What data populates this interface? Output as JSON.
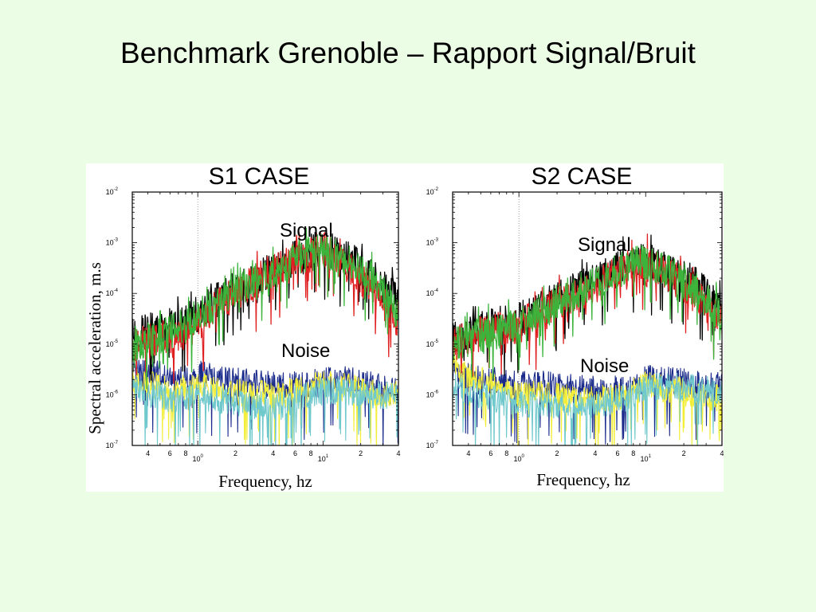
{
  "slide": {
    "title": "Benchmark Grenoble – Rapport Signal/Bruit"
  },
  "colors": {
    "background": "#ecfde6",
    "signal_black": "#000000",
    "signal_red": "#e02020",
    "signal_green": "#3cb43c",
    "noise_navy": "#1a2a8a",
    "noise_yellow": "#f2ee3a",
    "noise_cyan": "#6ec8cc",
    "reference_line": "#888888"
  },
  "y_axis_label": "Spectral acceleration, m.s",
  "chart_data": [
    {
      "type": "line",
      "title": "S1 CASE",
      "xlabel": "Frequency, hz",
      "ylabel": "Spectral acceleration, m.s",
      "xscale": "log",
      "yscale": "log",
      "xlim": [
        0.3,
        40
      ],
      "ylim": [
        1e-07,
        0.01
      ],
      "reference_line_x": 1,
      "x_ticks": [
        {
          "value": 0.4,
          "label": "4",
          "exp": ""
        },
        {
          "value": 0.6,
          "label": "6",
          "exp": ""
        },
        {
          "value": 0.8,
          "label": "8",
          "exp": ""
        },
        {
          "value": 1,
          "label": "10",
          "exp": "0"
        },
        {
          "value": 2,
          "label": "2",
          "exp": ""
        },
        {
          "value": 4,
          "label": "4",
          "exp": ""
        },
        {
          "value": 6,
          "label": "6",
          "exp": ""
        },
        {
          "value": 8,
          "label": "8",
          "exp": ""
        },
        {
          "value": 10,
          "label": "10",
          "exp": "1"
        },
        {
          "value": 20,
          "label": "2",
          "exp": ""
        },
        {
          "value": 40,
          "label": "4",
          "exp": ""
        }
      ],
      "y_ticks": [
        {
          "value": 1e-07,
          "label": "10",
          "exp": "-7"
        },
        {
          "value": 1e-06,
          "label": "10",
          "exp": "-6"
        },
        {
          "value": 1e-05,
          "label": "10",
          "exp": "-5"
        },
        {
          "value": 0.0001,
          "label": "10",
          "exp": "-4"
        },
        {
          "value": 0.001,
          "label": "10",
          "exp": "-3"
        },
        {
          "value": 0.01,
          "label": "10",
          "exp": "-2"
        }
      ],
      "annotations": {
        "signal": "Signal",
        "noise": "Noise"
      },
      "series": [
        {
          "group": "signal",
          "color": "#000000",
          "x": [
            0.3,
            0.45,
            0.7,
            1.0,
            1.5,
            2.0,
            3.0,
            4.5,
            6.0,
            8.0,
            10.0,
            13.0,
            18.0,
            25.0,
            32.0,
            40.0
          ],
          "y": [
            1.5e-05,
            2e-05,
            2.5e-05,
            4e-05,
            8e-05,
            0.00012,
            0.0002,
            0.00035,
            0.0005,
            0.0007,
            0.0008,
            0.0006,
            0.0004,
            0.0002,
            0.00012,
            8e-05
          ]
        },
        {
          "group": "signal",
          "color": "#e02020",
          "x": [
            0.3,
            0.45,
            0.7,
            1.0,
            1.5,
            2.0,
            3.0,
            4.5,
            6.0,
            8.0,
            10.0,
            13.0,
            18.0,
            25.0,
            32.0,
            40.0
          ],
          "y": [
            1e-05,
            1.2e-05,
            1.5e-05,
            2.5e-05,
            6e-05,
            0.0001,
            0.00018,
            0.0003,
            0.00045,
            0.00065,
            0.0008,
            0.0005,
            0.00025,
            0.00012,
            5e-05,
            3e-05
          ]
        },
        {
          "group": "signal",
          "color": "#3cb43c",
          "x": [
            0.3,
            0.45,
            0.7,
            1.0,
            1.5,
            2.0,
            3.0,
            4.5,
            6.0,
            8.0,
            10.0,
            13.0,
            18.0,
            25.0,
            32.0,
            40.0
          ],
          "y": [
            1e-05,
            1.3e-05,
            2e-05,
            3.5e-05,
            7e-05,
            0.00011,
            0.00018,
            0.0003,
            0.00045,
            0.0006,
            0.0007,
            0.00055,
            0.00035,
            0.00018,
            9e-05,
            4e-05
          ]
        },
        {
          "group": "noise",
          "color": "#1a2a8a",
          "x": [
            0.3,
            0.45,
            0.7,
            1.0,
            1.5,
            2.0,
            3.0,
            4.5,
            6.0,
            8.0,
            10.0,
            13.0,
            18.0,
            25.0,
            32.0,
            40.0
          ],
          "y": [
            3e-06,
            2.5e-06,
            2.2e-06,
            2.5e-06,
            2e-06,
            1.8e-06,
            1.6e-06,
            1.5e-06,
            1.5e-06,
            1.6e-06,
            1.8e-06,
            2e-06,
            1.8e-06,
            1.5e-06,
            1.2e-06,
            1.3e-06
          ]
        },
        {
          "group": "noise",
          "color": "#f2ee3a",
          "x": [
            0.3,
            0.45,
            0.7,
            1.0,
            1.5,
            2.0,
            3.0,
            4.5,
            6.0,
            8.0,
            10.0,
            13.0,
            18.0,
            25.0,
            32.0,
            40.0
          ],
          "y": [
            2e-06,
            1.5e-06,
            1.3e-06,
            1.5e-06,
            1.2e-06,
            1.1e-06,
            1e-06,
            1e-06,
            1.2e-06,
            1.4e-06,
            1.6e-06,
            1.5e-06,
            1.3e-06,
            1.1e-06,
            1e-06,
            1e-06
          ]
        },
        {
          "group": "noise",
          "color": "#6ec8cc",
          "x": [
            0.3,
            0.45,
            0.7,
            1.0,
            1.5,
            2.0,
            3.0,
            4.5,
            6.0,
            8.0,
            10.0,
            13.0,
            18.0,
            25.0,
            32.0,
            40.0
          ],
          "y": [
            1.5e-06,
            1e-06,
            8e-07,
            1e-06,
            8e-07,
            7e-07,
            6e-07,
            6e-07,
            8e-07,
            1e-06,
            1.2e-06,
            1.2e-06,
            1.1e-06,
            1e-06,
            1e-06,
            1.1e-06
          ]
        }
      ]
    },
    {
      "type": "line",
      "title": "S2 CASE",
      "xlabel": "Frequency, hz",
      "ylabel": "",
      "xscale": "log",
      "yscale": "log",
      "xlim": [
        0.3,
        40
      ],
      "ylim": [
        1e-07,
        0.01
      ],
      "reference_line_x": 1,
      "x_ticks": [
        {
          "value": 0.4,
          "label": "4",
          "exp": ""
        },
        {
          "value": 0.6,
          "label": "6",
          "exp": ""
        },
        {
          "value": 0.8,
          "label": "8",
          "exp": ""
        },
        {
          "value": 1,
          "label": "10",
          "exp": "0"
        },
        {
          "value": 2,
          "label": "2",
          "exp": ""
        },
        {
          "value": 4,
          "label": "4",
          "exp": ""
        },
        {
          "value": 6,
          "label": "6",
          "exp": ""
        },
        {
          "value": 8,
          "label": "8",
          "exp": ""
        },
        {
          "value": 10,
          "label": "10",
          "exp": "1"
        },
        {
          "value": 20,
          "label": "2",
          "exp": ""
        },
        {
          "value": 40,
          "label": "4",
          "exp": ""
        }
      ],
      "y_ticks": [
        {
          "value": 1e-07,
          "label": "10",
          "exp": "-7"
        },
        {
          "value": 1e-06,
          "label": "10",
          "exp": "-6"
        },
        {
          "value": 1e-05,
          "label": "10",
          "exp": "-5"
        },
        {
          "value": 0.0001,
          "label": "10",
          "exp": "-4"
        },
        {
          "value": 0.001,
          "label": "10",
          "exp": "-3"
        },
        {
          "value": 0.01,
          "label": "10",
          "exp": "-2"
        }
      ],
      "annotations": {
        "signal": "Signal",
        "noise": "Noise"
      },
      "series": [
        {
          "group": "signal",
          "color": "#000000",
          "x": [
            0.3,
            0.45,
            0.7,
            1.0,
            1.5,
            2.0,
            3.0,
            4.5,
            6.0,
            8.0,
            10.0,
            13.0,
            18.0,
            25.0,
            32.0,
            40.0
          ],
          "y": [
            1.2e-05,
            2e-05,
            2.5e-05,
            3e-05,
            5e-05,
            8e-05,
            0.00013,
            0.0002,
            0.0003,
            0.0004,
            0.00045,
            0.00035,
            0.00022,
            0.00015,
            8e-05,
            5e-05
          ]
        },
        {
          "group": "signal",
          "color": "#e02020",
          "x": [
            0.3,
            0.45,
            0.7,
            1.0,
            1.5,
            2.0,
            3.0,
            4.5,
            6.0,
            8.0,
            10.0,
            13.0,
            18.0,
            25.0,
            32.0,
            40.0
          ],
          "y": [
            1e-05,
            1.5e-05,
            2e-05,
            2.2e-05,
            4e-05,
            6e-05,
            0.0001,
            0.00016,
            0.00025,
            0.00035,
            0.0004,
            0.0003,
            0.00018,
            0.0001,
            5e-05,
            3e-05
          ]
        },
        {
          "group": "signal",
          "color": "#3cb43c",
          "x": [
            0.3,
            0.45,
            0.7,
            1.0,
            1.5,
            2.0,
            3.0,
            4.5,
            6.0,
            8.0,
            10.0,
            13.0,
            18.0,
            25.0,
            32.0,
            40.0
          ],
          "y": [
            1e-05,
            1.4e-05,
            1.8e-05,
            2.5e-05,
            4.5e-05,
            7e-05,
            0.00012,
            0.00018,
            0.00028,
            0.00038,
            0.00042,
            0.00032,
            0.0002,
            0.00012,
            6e-05,
            3.5e-05
          ]
        },
        {
          "group": "noise",
          "color": "#1a2a8a",
          "x": [
            0.3,
            0.45,
            0.7,
            1.0,
            1.5,
            2.0,
            3.0,
            4.5,
            6.0,
            8.0,
            10.0,
            13.0,
            18.0,
            25.0,
            32.0,
            40.0
          ],
          "y": [
            3e-06,
            2e-06,
            1.8e-06,
            1.5e-06,
            1.6e-06,
            1.5e-06,
            1.3e-06,
            1.2e-06,
            1.3e-06,
            1.5e-06,
            2e-06,
            2e-06,
            1.8e-06,
            1.6e-06,
            1.5e-06,
            1.5e-06
          ]
        },
        {
          "group": "noise",
          "color": "#f2ee3a",
          "x": [
            0.3,
            0.45,
            0.7,
            1.0,
            1.5,
            2.0,
            3.0,
            4.5,
            6.0,
            8.0,
            10.0,
            13.0,
            18.0,
            25.0,
            32.0,
            40.0
          ],
          "y": [
            4e-06,
            2e-06,
            1.5e-06,
            1e-06,
            1e-06,
            9e-07,
            8e-07,
            8e-07,
            9e-07,
            1.2e-06,
            1.5e-06,
            1.4e-06,
            1.2e-06,
            1e-06,
            9e-07,
            9e-07
          ]
        },
        {
          "group": "noise",
          "color": "#6ec8cc",
          "x": [
            0.3,
            0.45,
            0.7,
            1.0,
            1.5,
            2.0,
            3.0,
            4.5,
            6.0,
            8.0,
            10.0,
            13.0,
            18.0,
            25.0,
            32.0,
            40.0
          ],
          "y": [
            1.5e-06,
            1e-06,
            8e-07,
            6e-07,
            7e-07,
            6e-07,
            6e-07,
            7e-07,
            8e-07,
            1e-06,
            1.3e-06,
            1.5e-06,
            1.4e-06,
            1.3e-06,
            1.2e-06,
            1.1e-06
          ]
        }
      ]
    }
  ]
}
